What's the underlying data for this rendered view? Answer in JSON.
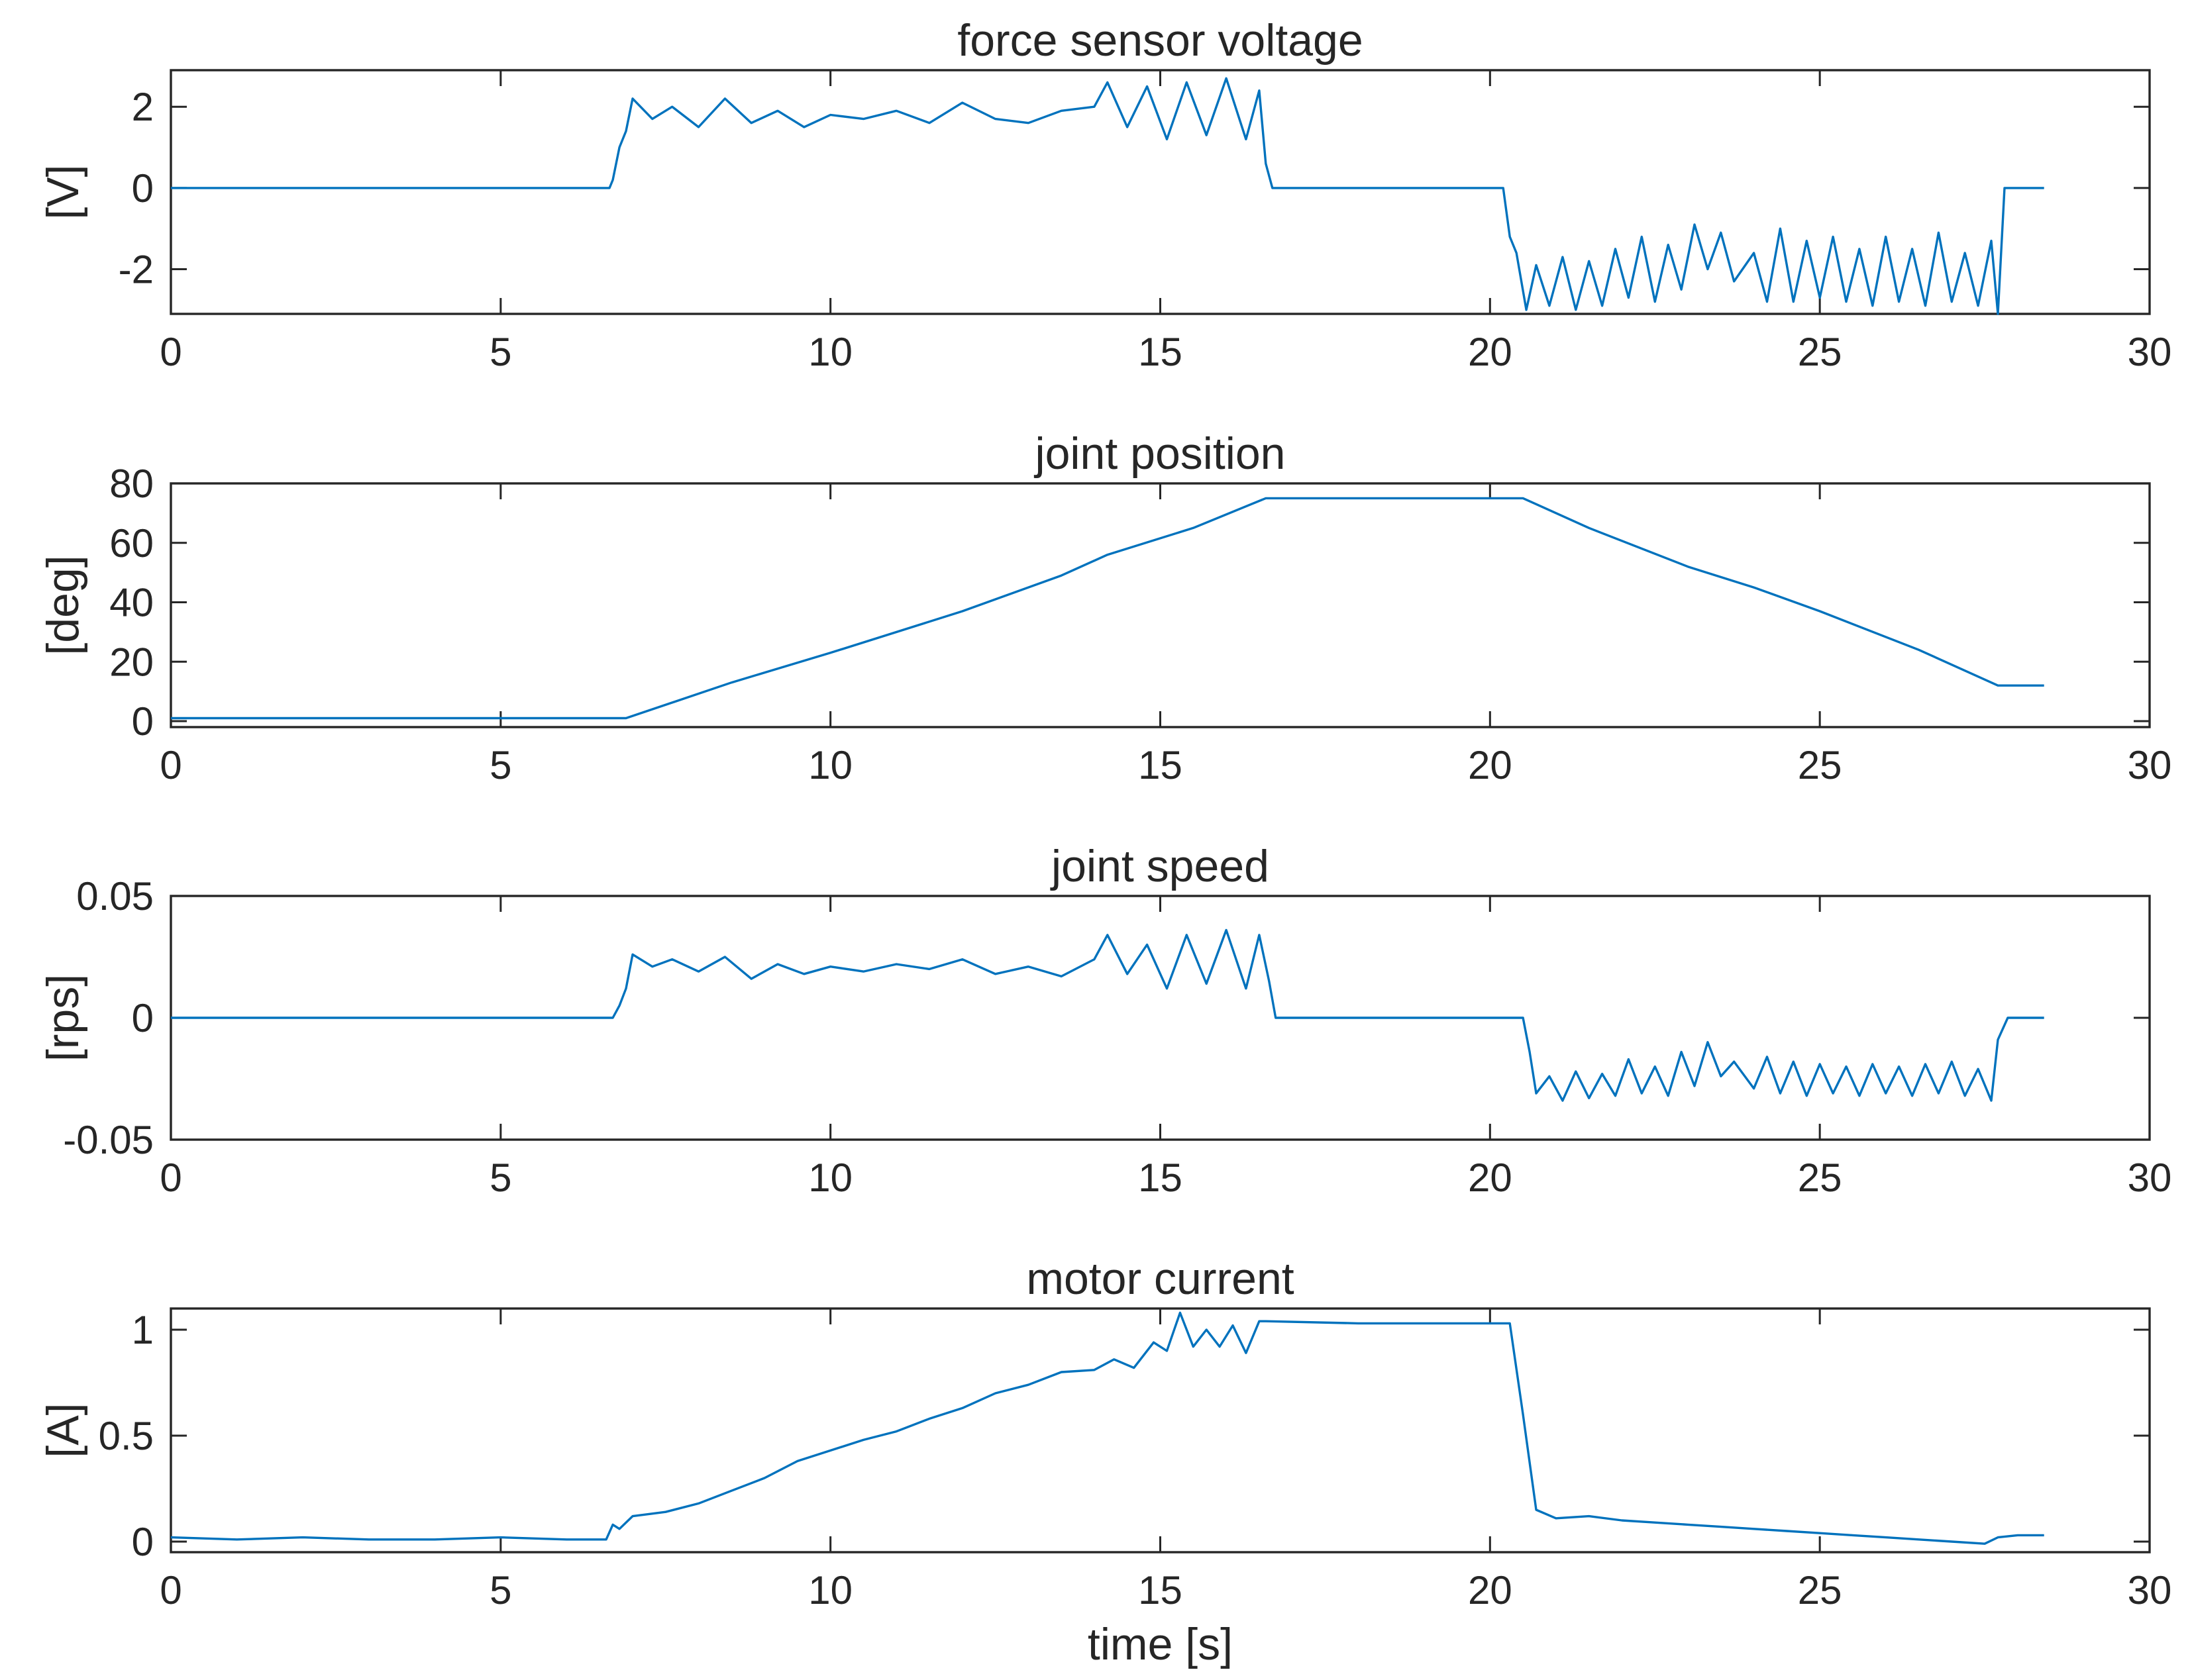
{
  "chart_data": [
    {
      "type": "line",
      "title": "force sensor voltage",
      "xlabel": "",
      "ylabel": "[V]",
      "xlim": [
        0,
        30
      ],
      "ylim": [
        -3.1,
        2.9
      ],
      "x_ticks": [
        0,
        5,
        10,
        15,
        20,
        25,
        30
      ],
      "x_tick_labels": [
        "0",
        "5",
        "10",
        "15",
        "20",
        "25",
        "30"
      ],
      "y_ticks": [
        -2,
        0,
        2
      ],
      "y_tick_labels": [
        "-2",
        "0",
        "2"
      ],
      "color": "#0072bd",
      "series": [
        {
          "name": "force sensor voltage",
          "x": [
            0,
            6.65,
            6.7,
            6.8,
            6.9,
            7.0,
            7.3,
            7.6,
            8.0,
            8.4,
            8.8,
            9.2,
            9.6,
            10.0,
            10.5,
            11.0,
            11.5,
            12.0,
            12.5,
            13.0,
            13.5,
            14.0,
            14.2,
            14.5,
            14.8,
            15.1,
            15.4,
            15.7,
            16.0,
            16.3,
            16.5,
            16.6,
            16.7,
            20.2,
            20.3,
            20.4,
            20.55,
            20.7,
            20.9,
            21.1,
            21.3,
            21.5,
            21.7,
            21.9,
            22.1,
            22.3,
            22.5,
            22.7,
            22.9,
            23.1,
            23.3,
            23.5,
            23.7,
            24.0,
            24.2,
            24.4,
            24.6,
            24.8,
            25.0,
            25.2,
            25.4,
            25.6,
            25.8,
            26.0,
            26.2,
            26.4,
            26.6,
            26.8,
            27.0,
            27.2,
            27.4,
            27.6,
            27.7,
            27.8,
            28.4
          ],
          "y": [
            0,
            0,
            0.2,
            1.0,
            1.4,
            2.2,
            1.7,
            2.0,
            1.5,
            2.2,
            1.6,
            1.9,
            1.5,
            1.8,
            1.7,
            1.9,
            1.6,
            2.1,
            1.7,
            1.6,
            1.9,
            2.0,
            2.6,
            1.5,
            2.5,
            1.2,
            2.6,
            1.3,
            2.7,
            1.2,
            2.4,
            0.6,
            0,
            0,
            -1.2,
            -1.6,
            -3.0,
            -1.9,
            -2.9,
            -1.7,
            -3.0,
            -1.8,
            -2.9,
            -1.5,
            -2.7,
            -1.2,
            -2.8,
            -1.4,
            -2.5,
            -0.9,
            -2.0,
            -1.1,
            -2.3,
            -1.6,
            -2.8,
            -1.0,
            -2.8,
            -1.3,
            -2.7,
            -1.2,
            -2.8,
            -1.5,
            -2.9,
            -1.2,
            -2.8,
            -1.5,
            -2.9,
            -1.1,
            -2.8,
            -1.6,
            -2.9,
            -1.3,
            -3.1,
            0,
            0
          ]
        }
      ]
    },
    {
      "type": "line",
      "title": "joint position",
      "xlabel": "",
      "ylabel": "[deg]",
      "xlim": [
        0,
        30
      ],
      "ylim": [
        -2,
        80
      ],
      "x_ticks": [
        0,
        5,
        10,
        15,
        20,
        25,
        30
      ],
      "x_tick_labels": [
        "0",
        "5",
        "10",
        "15",
        "20",
        "25",
        "30"
      ],
      "y_ticks": [
        0,
        20,
        40,
        60,
        80
      ],
      "y_tick_labels": [
        "0",
        "20",
        "40",
        "60",
        "80"
      ],
      "color": "#0072bd",
      "series": [
        {
          "name": "joint position",
          "x": [
            0,
            6.9,
            8.5,
            10.0,
            12.0,
            13.5,
            14.2,
            15.5,
            16.6,
            20.5,
            21.5,
            23.0,
            24.0,
            25.0,
            26.5,
            27.7,
            28.4
          ],
          "y": [
            1,
            1,
            13,
            23,
            37,
            49,
            56,
            65,
            75,
            75,
            65,
            52,
            45,
            37,
            24,
            12,
            12
          ]
        }
      ]
    },
    {
      "type": "line",
      "title": "joint speed",
      "xlabel": "",
      "ylabel": "[rps]",
      "xlim": [
        0,
        30
      ],
      "ylim": [
        -0.05,
        0.05
      ],
      "x_ticks": [
        0,
        5,
        10,
        15,
        20,
        25,
        30
      ],
      "x_tick_labels": [
        "0",
        "5",
        "10",
        "15",
        "20",
        "25",
        "30"
      ],
      "y_ticks": [
        -0.05,
        0,
        0.05
      ],
      "y_tick_labels": [
        "-0.05",
        "0",
        "0.05"
      ],
      "color": "#0072bd",
      "series": [
        {
          "name": "joint speed",
          "x": [
            0,
            6.7,
            6.8,
            6.9,
            7.0,
            7.3,
            7.6,
            8.0,
            8.4,
            8.8,
            9.2,
            9.6,
            10.0,
            10.5,
            11.0,
            11.5,
            12.0,
            12.5,
            13.0,
            13.5,
            14.0,
            14.2,
            14.5,
            14.8,
            15.1,
            15.4,
            15.7,
            16.0,
            16.3,
            16.5,
            16.65,
            16.75,
            20.5,
            20.6,
            20.7,
            20.9,
            21.1,
            21.3,
            21.5,
            21.7,
            21.9,
            22.1,
            22.3,
            22.5,
            22.7,
            22.9,
            23.1,
            23.3,
            23.5,
            23.7,
            24.0,
            24.2,
            24.4,
            24.6,
            24.8,
            25.0,
            25.2,
            25.4,
            25.6,
            25.8,
            26.0,
            26.2,
            26.4,
            26.6,
            26.8,
            27.0,
            27.2,
            27.4,
            27.6,
            27.7,
            27.85,
            28.4
          ],
          "y": [
            0,
            0,
            0.005,
            0.012,
            0.026,
            0.021,
            0.024,
            0.019,
            0.025,
            0.016,
            0.022,
            0.018,
            0.021,
            0.019,
            0.022,
            0.02,
            0.024,
            0.018,
            0.021,
            0.017,
            0.024,
            0.034,
            0.018,
            0.03,
            0.012,
            0.034,
            0.014,
            0.036,
            0.012,
            0.034,
            0.015,
            0,
            0,
            -0.014,
            -0.031,
            -0.024,
            -0.034,
            -0.022,
            -0.033,
            -0.023,
            -0.032,
            -0.017,
            -0.031,
            -0.02,
            -0.032,
            -0.014,
            -0.028,
            -0.01,
            -0.024,
            -0.018,
            -0.029,
            -0.016,
            -0.031,
            -0.018,
            -0.032,
            -0.019,
            -0.031,
            -0.02,
            -0.032,
            -0.019,
            -0.031,
            -0.02,
            -0.032,
            -0.019,
            -0.031,
            -0.018,
            -0.032,
            -0.021,
            -0.034,
            -0.009,
            0,
            0
          ]
        }
      ]
    },
    {
      "type": "line",
      "title": "motor current",
      "xlabel": "time [s]",
      "ylabel": "[A]",
      "xlim": [
        0,
        30
      ],
      "ylim": [
        -0.05,
        1.1
      ],
      "x_ticks": [
        0,
        5,
        10,
        15,
        20,
        25,
        30
      ],
      "x_tick_labels": [
        "0",
        "5",
        "10",
        "15",
        "20",
        "25",
        "30"
      ],
      "y_ticks": [
        0,
        0.5,
        1
      ],
      "y_tick_labels": [
        "0",
        "0.5",
        "1"
      ],
      "color": "#0072bd",
      "series": [
        {
          "name": "motor current",
          "x": [
            0,
            1,
            2,
            3,
            4,
            5,
            6,
            6.6,
            6.7,
            6.8,
            7.0,
            7.5,
            8.0,
            8.5,
            9.0,
            9.5,
            10.0,
            10.5,
            11.0,
            11.5,
            12.0,
            12.5,
            13.0,
            13.5,
            14.0,
            14.3,
            14.6,
            14.9,
            15.1,
            15.3,
            15.5,
            15.7,
            15.9,
            16.1,
            16.3,
            16.5,
            16.6,
            18.0,
            20.3,
            20.5,
            20.7,
            21.0,
            21.5,
            22.0,
            22.5,
            23.0,
            23.5,
            24.0,
            24.5,
            25.0,
            25.5,
            26.0,
            26.5,
            27.0,
            27.5,
            27.7,
            28.0,
            28.4
          ],
          "y": [
            0.02,
            0.01,
            0.02,
            0.01,
            0.01,
            0.02,
            0.01,
            0.01,
            0.08,
            0.06,
            0.12,
            0.14,
            0.18,
            0.24,
            0.3,
            0.38,
            0.43,
            0.48,
            0.52,
            0.58,
            0.63,
            0.7,
            0.74,
            0.8,
            0.81,
            0.86,
            0.82,
            0.94,
            0.9,
            1.08,
            0.92,
            1.0,
            0.92,
            1.02,
            0.89,
            1.04,
            1.04,
            1.03,
            1.03,
            0.6,
            0.15,
            0.11,
            0.12,
            0.1,
            0.09,
            0.08,
            0.07,
            0.06,
            0.05,
            0.04,
            0.03,
            0.02,
            0.01,
            0.0,
            -0.01,
            0.02,
            0.03,
            0.03
          ]
        }
      ]
    }
  ]
}
